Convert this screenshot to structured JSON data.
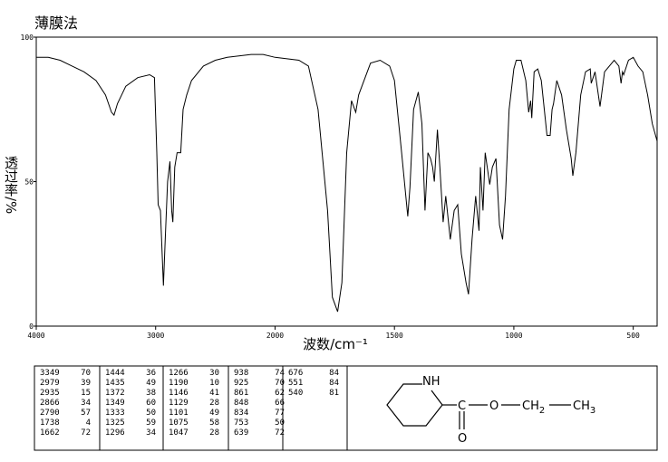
{
  "chart_data": {
    "type": "line",
    "title": "薄膜法",
    "x_label": "波数/cm⁻¹",
    "y_label": "透过率/%",
    "xlim": [
      4000,
      400
    ],
    "x_scale_break": 2000,
    "xticks": [
      4000,
      3000,
      2000,
      1500,
      1000,
      500
    ],
    "ylim": [
      0,
      100
    ],
    "yticks": [
      0,
      50,
      100
    ],
    "series": [
      {
        "color": "#000000",
        "x": [
          4000,
          3900,
          3800,
          3700,
          3600,
          3500,
          3420,
          3370,
          3349,
          3320,
          3250,
          3150,
          3050,
          3010,
          2990,
          2979,
          2960,
          2935,
          2920,
          2900,
          2880,
          2866,
          2856,
          2840,
          2820,
          2790,
          2770,
          2740,
          2700,
          2600,
          2500,
          2400,
          2200,
          2100,
          2000,
          1900,
          1860,
          1820,
          1780,
          1760,
          1738,
          1720,
          1700,
          1680,
          1662,
          1650,
          1600,
          1560,
          1520,
          1500,
          1470,
          1444,
          1435,
          1420,
          1400,
          1385,
          1372,
          1360,
          1349,
          1340,
          1333,
          1320,
          1310,
          1296,
          1285,
          1266,
          1250,
          1235,
          1220,
          1200,
          1190,
          1175,
          1160,
          1146,
          1140,
          1129,
          1120,
          1101,
          1090,
          1075,
          1060,
          1047,
          1035,
          1020,
          1000,
          990,
          970,
          950,
          938,
          930,
          925,
          915,
          900,
          885,
          861,
          848,
          840,
          834,
          820,
          800,
          780,
          760,
          753,
          740,
          720,
          700,
          680,
          676,
          660,
          639,
          620,
          580,
          560,
          551,
          545,
          540,
          520,
          500,
          480,
          460,
          440,
          420,
          400
        ],
        "values": [
          93,
          93,
          92,
          90,
          88,
          85,
          80,
          74,
          73,
          77,
          83,
          86,
          87,
          86,
          60,
          42,
          40,
          14,
          30,
          50,
          57,
          40,
          36,
          55,
          60,
          60,
          75,
          80,
          85,
          90,
          92,
          93,
          94,
          94,
          93,
          92,
          90,
          75,
          40,
          10,
          5,
          15,
          60,
          78,
          74,
          80,
          91,
          92,
          90,
          85,
          60,
          38,
          48,
          75,
          81,
          70,
          40,
          60,
          58,
          55,
          50,
          68,
          55,
          36,
          45,
          30,
          40,
          42,
          25,
          15,
          11,
          30,
          45,
          33,
          55,
          40,
          60,
          49,
          55,
          58,
          35,
          30,
          45,
          75,
          89,
          92,
          92,
          85,
          74,
          78,
          72,
          88,
          89,
          85,
          66,
          66,
          75,
          77,
          85,
          80,
          68,
          58,
          52,
          60,
          80,
          88,
          89,
          84,
          88,
          76,
          88,
          92,
          90,
          84,
          88,
          87,
          92,
          93,
          90,
          88,
          80,
          70,
          64
        ]
      }
    ]
  },
  "peak_table": {
    "columns": [
      [
        [
          3349,
          70
        ],
        [
          2979,
          39
        ],
        [
          2935,
          15
        ],
        [
          2866,
          34
        ],
        [
          2790,
          57
        ],
        [
          1738,
          4
        ],
        [
          1662,
          72
        ]
      ],
      [
        [
          1444,
          36
        ],
        [
          1435,
          49
        ],
        [
          1372,
          38
        ],
        [
          1349,
          60
        ],
        [
          1333,
          50
        ],
        [
          1325,
          59
        ],
        [
          1296,
          34
        ]
      ],
      [
        [
          1266,
          30
        ],
        [
          1190,
          10
        ],
        [
          1146,
          41
        ],
        [
          1129,
          28
        ],
        [
          1101,
          49
        ],
        [
          1075,
          58
        ],
        [
          1047,
          28
        ]
      ],
      [
        [
          938,
          74
        ],
        [
          925,
          70
        ],
        [
          861,
          62
        ],
        [
          848,
          66
        ],
        [
          834,
          77
        ],
        [
          753,
          50
        ],
        [
          639,
          72
        ]
      ],
      [
        [
          676,
          84
        ],
        [
          551,
          84
        ],
        [
          540,
          81
        ]
      ]
    ]
  },
  "structure": {
    "nh": "NH",
    "carbon": "C",
    "ester_o": "O",
    "ch2": "CH",
    "ch2_sub": "2",
    "ch3": "CH",
    "ch3_sub": "3",
    "carbonyl_o": "O"
  }
}
